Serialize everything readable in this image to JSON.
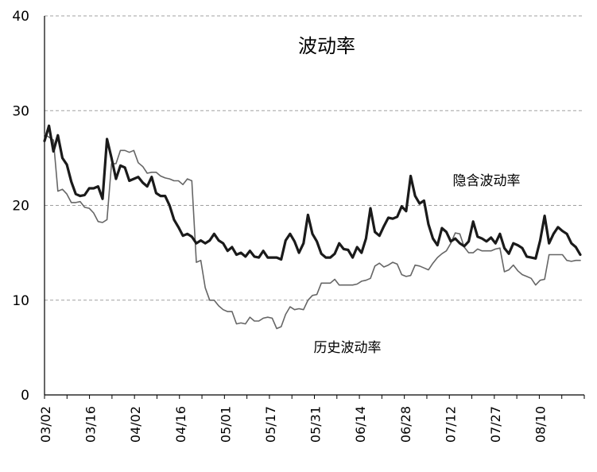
{
  "chart_data": {
    "type": "line",
    "title": "波动率",
    "xlabel": "",
    "ylabel": "",
    "ylim": [
      0,
      40
    ],
    "yticks": [
      0,
      10,
      20,
      30,
      40
    ],
    "grid": "dashed horizontal gridlines at 10, 20, 30, 40",
    "xtick_labels": [
      "03/02",
      "03/16",
      "04/02",
      "04/16",
      "05/01",
      "05/17",
      "05/31",
      "06/14",
      "06/28",
      "07/12",
      "07/27",
      "08/10"
    ],
    "legend": "none (series labeled by annotations in plot)",
    "series": [
      {
        "name": "隐含波动率",
        "color": "#1a1a1a",
        "values": [
          26.8,
          28.4,
          25.7,
          27.4,
          25.0,
          24.3,
          22.5,
          21.2,
          21.0,
          21.1,
          21.8,
          21.8,
          22.0,
          20.7,
          27.0,
          25.0,
          22.8,
          24.2,
          24.0,
          22.6,
          22.8,
          23.0,
          22.4,
          22.0,
          23.0,
          21.3,
          21.0,
          21.0,
          20.0,
          18.5,
          17.7,
          16.8,
          17.0,
          16.7,
          16.0,
          16.3,
          16.0,
          16.3,
          17.0,
          16.3,
          16.0,
          15.2,
          15.6,
          14.8,
          15.0,
          14.6,
          15.2,
          14.6,
          14.5,
          15.2,
          14.5,
          14.5,
          14.5,
          14.3,
          16.3,
          17.0,
          16.2,
          15.0,
          16.0,
          19.0,
          17.0,
          16.2,
          14.9,
          14.5,
          14.5,
          14.9,
          16.0,
          15.4,
          15.3,
          14.5,
          15.6,
          15.0,
          16.5,
          19.7,
          17.2,
          16.8,
          17.8,
          18.7,
          18.6,
          18.8,
          19.9,
          19.4,
          23.1,
          21.0,
          20.2,
          20.5,
          18.0,
          16.5,
          15.8,
          17.6,
          17.2,
          16.2,
          16.5,
          16.0,
          15.7,
          16.2,
          18.3,
          16.7,
          16.5,
          16.2,
          16.6,
          16.0,
          17.0,
          15.5,
          14.9,
          16.0,
          15.8,
          15.5,
          14.6,
          14.5,
          14.4,
          16.3,
          18.9,
          16.0,
          17.0,
          17.7,
          17.3,
          17.0,
          16.0,
          15.6,
          14.8
        ]
      },
      {
        "name": "历史波动率",
        "color": "#666666",
        "values": [
          27.5,
          27.2,
          26.9,
          21.5,
          21.7,
          21.2,
          20.3,
          20.3,
          20.4,
          19.8,
          19.7,
          19.2,
          18.3,
          18.2,
          18.5,
          24.4,
          24.4,
          25.8,
          25.8,
          25.6,
          25.8,
          24.5,
          24.1,
          23.4,
          23.5,
          23.5,
          23.1,
          22.9,
          22.8,
          22.6,
          22.6,
          22.2,
          22.8,
          22.6,
          14.0,
          14.2,
          11.3,
          10.0,
          10.0,
          9.4,
          9.0,
          8.8,
          8.8,
          7.5,
          7.6,
          7.5,
          8.2,
          7.8,
          7.8,
          8.1,
          8.2,
          8.1,
          7.0,
          7.2,
          8.5,
          9.3,
          9.0,
          9.1,
          9.0,
          10.0,
          10.5,
          10.6,
          11.8,
          11.8,
          11.8,
          12.2,
          11.6,
          11.6,
          11.6,
          11.6,
          11.7,
          12.0,
          12.1,
          12.3,
          13.6,
          13.9,
          13.5,
          13.7,
          14.0,
          13.8,
          12.7,
          12.5,
          12.6,
          13.7,
          13.6,
          13.4,
          13.2,
          13.9,
          14.5,
          14.9,
          15.2,
          16.0,
          17.1,
          17.0,
          15.6,
          15.0,
          15.0,
          15.4,
          15.2,
          15.2,
          15.2,
          15.4,
          15.5,
          13.0,
          13.2,
          13.7,
          13.1,
          12.7,
          12.5,
          12.3,
          11.6,
          12.1,
          12.2,
          14.8,
          14.8,
          14.8,
          14.8,
          14.2,
          14.1,
          14.2,
          14.2
        ]
      }
    ],
    "annotations": [
      {
        "text": "隐含波动率",
        "series": "隐含波动率"
      },
      {
        "text": "历史波动率",
        "series": "历史波动率"
      }
    ]
  }
}
